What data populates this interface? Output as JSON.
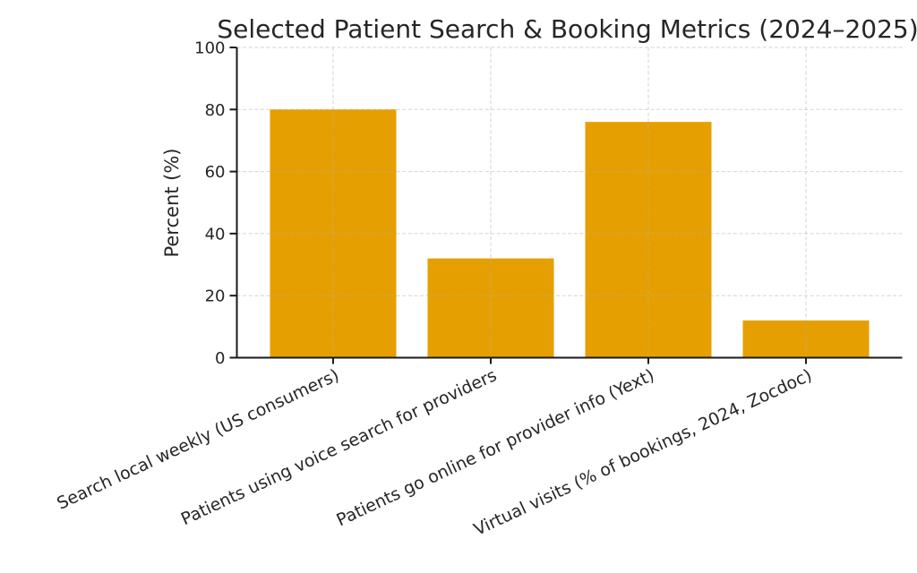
{
  "figure": {
    "title": "Selected Patient Search & Booking Metrics (2024–2025)"
  },
  "chart_data": {
    "type": "bar",
    "title": "Selected Patient Search & Booking Metrics (2024–2025)",
    "categories": [
      "Search local weekly (US consumers)",
      "Patients using voice search for providers",
      "Patients go online for provider info (Yext)",
      "Virtual visits (% of bookings, 2024, Zocdoc)"
    ],
    "values": [
      80,
      32,
      76,
      12
    ],
    "xlabel": "",
    "ylabel": "Percent (%)",
    "ylim": [
      0,
      100
    ],
    "yticks": [
      0,
      20,
      40,
      60,
      80,
      100
    ],
    "grid": true,
    "grid_linestyle": "dashed",
    "legend_position": "none",
    "bar_color": "#E69F00",
    "xtick_rotation_deg": -25
  },
  "colors": {
    "bar": "#E69F00",
    "grid": "#b0b0b0",
    "axis": "#1a1a1a",
    "text": "#262626",
    "background": "#ffffff"
  }
}
